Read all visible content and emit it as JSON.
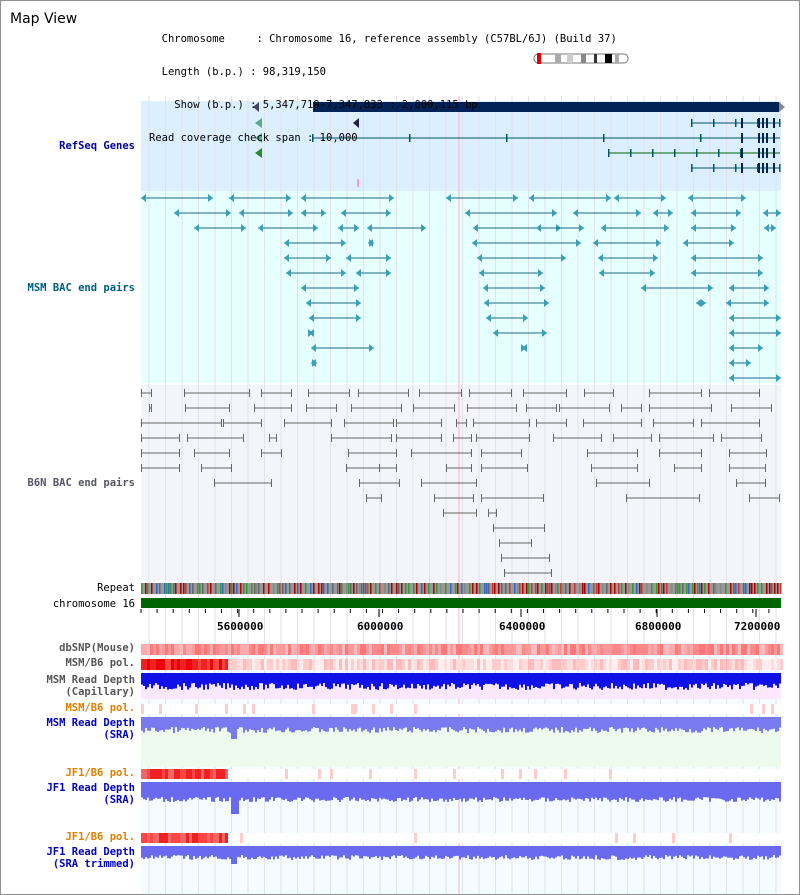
{
  "header": {
    "title": "Map View",
    "info_lines": [
      "  Chromosome     : Chromosome 16, reference assembly (C57BL/6J) (Build 37)",
      "  Length (b.p.) : 98,319,150",
      "    Show (b.p.) : 5,347,719-7,347,833 : 2,000,115 bp",
      "Read coverage check span : 10,000"
    ]
  },
  "tracks": {
    "refseq": "RefSeq Genes",
    "msm_bac": "MSM BAC end pairs",
    "b6n_bac": "B6N BAC end pairs",
    "repeat": "Repeat",
    "chromosome": "chromosome 16",
    "dbsnp": "dbSNP(Mouse)",
    "msm_b6_pol": "MSM/B6 pol.",
    "msm_depth_cap_1": "MSM Read Depth",
    "msm_depth_cap_2": "(Capillary)",
    "msm_b6_pol_2": "MSM/B6 pol.",
    "msm_depth_sra_1": "MSM Read Depth",
    "msm_depth_sra_2": "(SRA)",
    "jf1_b6_pol": "JF1/B6 pol.",
    "jf1_depth_sra_1": "JF1 Read Depth",
    "jf1_depth_sra_2": "(SRA)",
    "jf1_b6_pol_2": "JF1/B6 pol.",
    "jf1_depth_trim_1": "JF1 Read Depth",
    "jf1_depth_trim_2": "(SRA trimmed)"
  },
  "axis": {
    "ticks": [
      "5600000",
      "6000000",
      "6400000",
      "6800000",
      "7200000"
    ]
  },
  "colors": {
    "gene_dark": "#002255",
    "gene_line": "#005566",
    "refseq_bg": "#dcefff",
    "msm_bg": "#e6ffff",
    "b6n_bg": "#f4f4fb",
    "msm_label": "#006080",
    "refseq_label": "#0000a0",
    "pol_label": "#e08000",
    "depth_label": "#0000c0",
    "chrom_green": "#006400"
  }
}
